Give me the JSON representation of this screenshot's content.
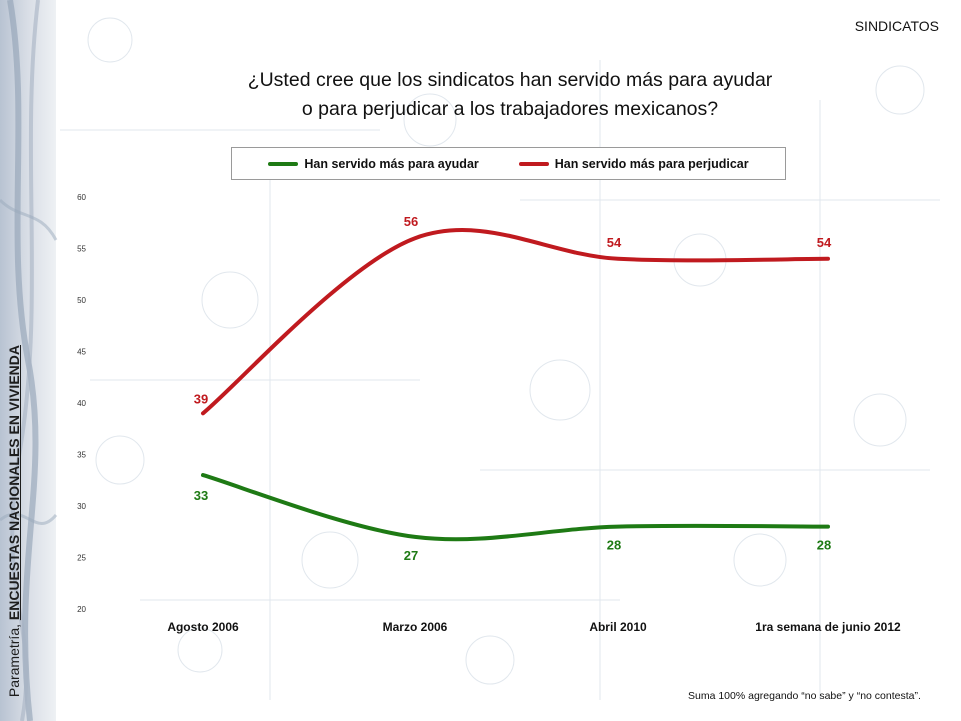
{
  "header": {
    "section": "SINDICATOS"
  },
  "side_label": {
    "prefix": "Parametría,",
    "bold": "ENCUESTAS NACIONALES EN VIVIENDA"
  },
  "footnote": "Suma 100%  agregando “no sabe” y “no contesta”.",
  "colors": {
    "ayudar": "#1e7a14",
    "perjudicar": "#c01a1f"
  },
  "chart_data": {
    "type": "line",
    "title": "¿Usted cree que los sindicatos han servido más para ayudar o para perjudicar a los trabajadores mexicanos?",
    "title_lines": [
      "¿Usted cree que los sindicatos han servido más para ayudar",
      "o para perjudicar a los trabajadores mexicanos?"
    ],
    "categories": [
      "Agosto 2006",
      "Marzo 2006",
      "Abril 2010",
      "1ra semana de junio 2012"
    ],
    "series": [
      {
        "name": "Han servido más para ayudar",
        "values": [
          33,
          27,
          28,
          28
        ],
        "color": "#1e7a14"
      },
      {
        "name": "Han servido más para perjudicar",
        "values": [
          39,
          56,
          54,
          54
        ],
        "color": "#c01a1f"
      }
    ],
    "ylim": [
      20,
      60
    ],
    "yticks": [
      20,
      25,
      30,
      35,
      40,
      45,
      50,
      55,
      60
    ],
    "legend": "top",
    "grid": false,
    "data_labels": true,
    "smooth": true
  }
}
